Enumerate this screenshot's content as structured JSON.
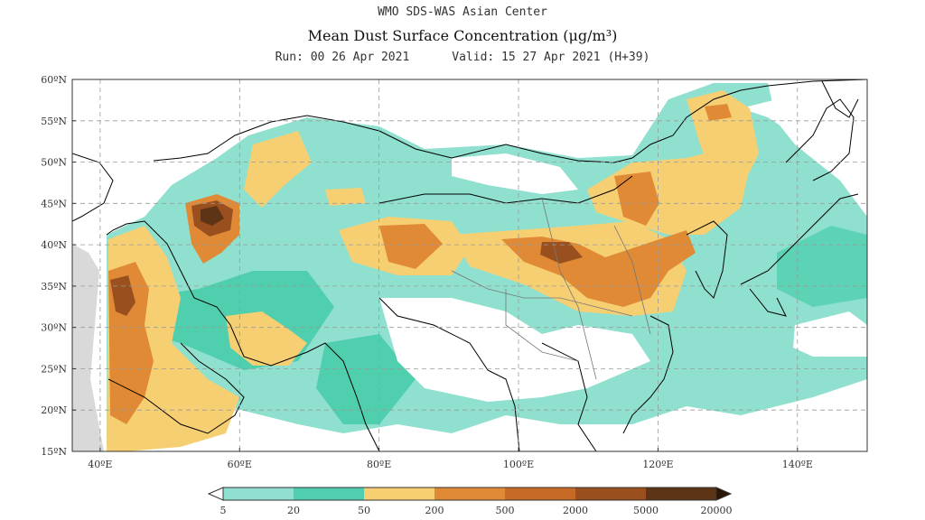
{
  "header": {
    "organization": "WMO SDS-WAS Asian Center",
    "title": "Mean Dust Surface Concentration (μg/m³)",
    "run_label": "Run: 00 26 Apr 2021",
    "valid_label": "Valid: 15 27 Apr 2021 (H+39)"
  },
  "map": {
    "lat_ticks": [
      "15ºN",
      "20ºN",
      "25ºN",
      "30ºN",
      "35ºN",
      "40ºN",
      "45ºN",
      "50ºN",
      "55ºN",
      "60ºN"
    ],
    "lon_ticks": [
      "40ºE",
      "60ºE",
      "80ºE",
      "100ºE",
      "120ºE",
      "140ºE"
    ],
    "extent": {
      "lon_min": 36,
      "lon_max": 150,
      "lat_min": 15,
      "lat_max": 60
    }
  },
  "legend": {
    "levels": [
      "5",
      "20",
      "50",
      "200",
      "500",
      "2000",
      "5000",
      "20000"
    ],
    "colors": [
      "#8fe0cf",
      "#4fcfae",
      "#f6cf73",
      "#e08a35",
      "#c66a26",
      "#9a4f1f",
      "#5e3416"
    ],
    "under_color": "#ffffff",
    "over_color": "#2a1508"
  }
}
